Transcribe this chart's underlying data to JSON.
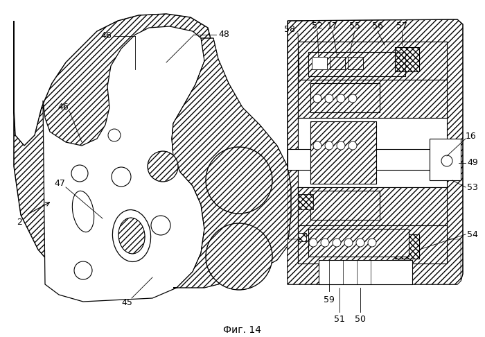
{
  "title": "Фиг. 14",
  "bg_color": "#ffffff"
}
